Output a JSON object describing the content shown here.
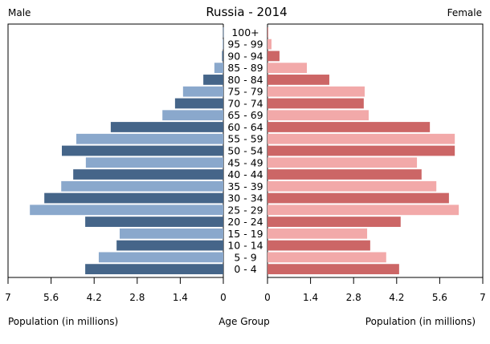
{
  "chart_data": {
    "type": "bar",
    "title": "Russia - 2014",
    "left_label": "Male",
    "right_label": "Female",
    "xlabel_left": "Population (in millions)",
    "xlabel_center": "Age Group",
    "xlabel_right": "Population (in millions)",
    "xlim": [
      0,
      7
    ],
    "ticks": [
      "7",
      "5.6",
      "4.2",
      "2.8",
      "1.4",
      "0"
    ],
    "ticks_right": [
      "0",
      "1.4",
      "2.8",
      "4.2",
      "5.6",
      "7"
    ],
    "categories": [
      "100+",
      "95 - 99",
      "90 - 94",
      "85 - 89",
      "80 - 84",
      "75 - 79",
      "70 - 74",
      "65 - 69",
      "60 - 64",
      "55 - 59",
      "50 - 54",
      "45 - 49",
      "40 - 44",
      "35 - 39",
      "30 - 34",
      "25 - 29",
      "20 - 24",
      "15 - 19",
      "10 - 14",
      "5 - 9",
      "0 - 4"
    ],
    "series": [
      {
        "name": "Male",
        "side": "left",
        "colors": [
          "#8aa8cc",
          "#456589"
        ],
        "values": [
          0.01,
          0.02,
          0.04,
          0.29,
          0.65,
          1.31,
          1.57,
          1.98,
          3.66,
          4.78,
          5.25,
          4.47,
          4.88,
          5.27,
          5.82,
          6.29,
          4.49,
          3.37,
          3.47,
          4.05,
          4.49
        ]
      },
      {
        "name": "Female",
        "side": "right",
        "colors": [
          "#f2a9a9",
          "#cc6666"
        ],
        "values": [
          0.02,
          0.13,
          0.39,
          1.28,
          2.01,
          3.16,
          3.13,
          3.29,
          5.28,
          6.09,
          6.09,
          4.86,
          5.01,
          5.49,
          5.9,
          6.22,
          4.33,
          3.24,
          3.34,
          3.86,
          4.28
        ]
      }
    ]
  }
}
